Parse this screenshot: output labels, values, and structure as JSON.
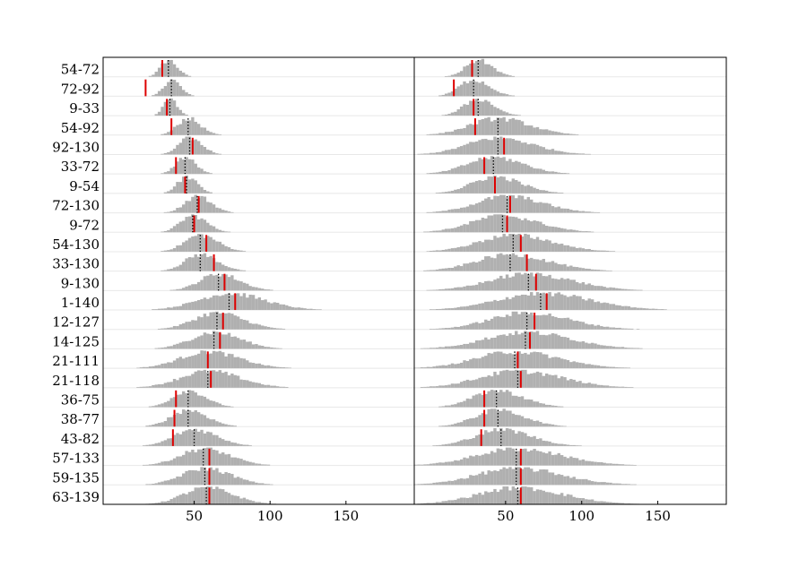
{
  "chart_data": {
    "type": "histogram-ridgeline",
    "title": "",
    "xlabel": "",
    "ylabel": "",
    "xlim": [
      -10,
      195
    ],
    "xticks": [
      50,
      100,
      150
    ],
    "xtick_labels": [
      "50",
      "100",
      "150"
    ],
    "colors": {
      "hist": "#b0b0b0",
      "observed": "#dd0000",
      "mean": "#000000",
      "axis": "#000000",
      "rowline": "#e8e8e8"
    },
    "rows": [
      "54-72",
      "72-92",
      "9-33",
      "54-92",
      "92-130",
      "33-72",
      "9-54",
      "72-130",
      "9-72",
      "54-130",
      "33-130",
      "9-130",
      "1-140",
      "12-127",
      "14-125",
      "21-111",
      "21-118",
      "36-75",
      "38-77",
      "43-82",
      "57-133",
      "59-135",
      "63-139"
    ],
    "panels": [
      {
        "name": "left",
        "observed": [
          29,
          18,
          32,
          35,
          49,
          38,
          44,
          53,
          50,
          58,
          63,
          70,
          77,
          69,
          67,
          59,
          61,
          38,
          37,
          36,
          60,
          60,
          60
        ],
        "dist_mean": [
          33,
          35,
          34,
          46,
          47,
          44,
          45,
          52,
          49,
          54,
          54,
          66,
          73,
          65,
          63,
          59,
          59,
          46,
          46,
          50,
          56,
          57,
          58
        ],
        "dist_spread": [
          5,
          5,
          4,
          7,
          7,
          6,
          6,
          8,
          8,
          10,
          10,
          12,
          20,
          15,
          15,
          18,
          18,
          10,
          11,
          13,
          15,
          15,
          15
        ]
      },
      {
        "name": "right",
        "observed": [
          28,
          16,
          29,
          30,
          49,
          36,
          43,
          53,
          51,
          60,
          64,
          70,
          77,
          69,
          66,
          58,
          60,
          36,
          36,
          34,
          60,
          60,
          60
        ],
        "dist_mean": [
          32,
          29,
          32,
          45,
          45,
          42,
          43,
          51,
          48,
          55,
          53,
          65,
          73,
          64,
          63,
          56,
          58,
          44,
          45,
          47,
          57,
          57,
          58
        ],
        "dist_spread": [
          8,
          9,
          9,
          18,
          20,
          17,
          15,
          20,
          20,
          22,
          22,
          25,
          28,
          24,
          26,
          25,
          25,
          15,
          15,
          17,
          26,
          26,
          26
        ]
      }
    ]
  }
}
